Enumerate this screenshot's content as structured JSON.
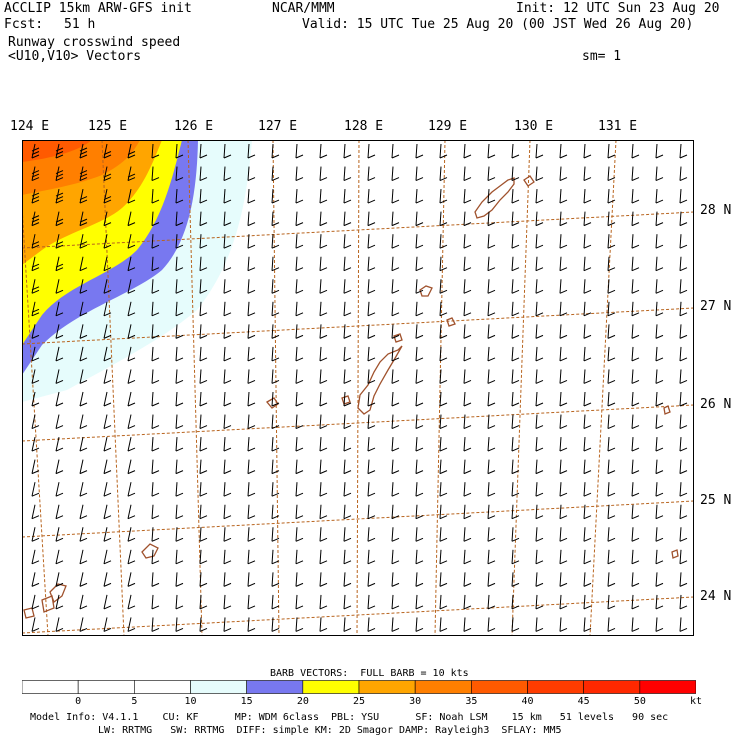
{
  "header": {
    "title": "ACCLIP 15km ARW-GFS init",
    "org": "NCAR/MMM",
    "init": "Init: 12 UTC Sun 23 Aug 20",
    "fcst_label": "Fcst:",
    "fcst_value": "51 h",
    "valid": "Valid: 15 UTC Tue 25 Aug 20 (00 JST Wed 26 Aug 20)",
    "field": "Runway crosswind speed",
    "vectors": "<U10,V10> Vectors",
    "smoothing": "sm= 1"
  },
  "map": {
    "lon_labels": [
      "124 E",
      "125 E",
      "126 E",
      "127 E",
      "128 E",
      "129 E",
      "130 E",
      "131 E"
    ],
    "lat_labels": [
      "28 N",
      "27 N",
      "26 N",
      "25 N",
      "24 N"
    ],
    "grid_color": "#b8641e",
    "coast_color": "#a0522d",
    "barb_color": "#000000",
    "high_wind_corner": "upper-left (NW)",
    "wind_direction": "from south (barbs pointing north)"
  },
  "colorbar": {
    "caption": "BARB VECTORS:  FULL BARB = 10 kts",
    "ticks": [
      "0",
      "5",
      "10",
      "15",
      "20",
      "25",
      "30",
      "35",
      "40",
      "45",
      "50"
    ],
    "unit": "kt",
    "colors": [
      "#ffffff",
      "#ffffff",
      "#ffffff",
      "#e6fcfc",
      "#7878f0",
      "#ffff00",
      "#ffa500",
      "#ff7f00",
      "#ff5a00",
      "#ff3c00",
      "#ff2800",
      "#ff0000"
    ]
  },
  "footer": {
    "line1": "Model Info: V4.1.1    CU: KF      MP: WDM 6class  PBL: YSU      SF: Noah LSM    15 km   51 levels   90 sec",
    "line2": "LW: RRTMG   SW: RRTMG  DIFF: simple KM: 2D Smagor DAMP: Rayleigh3  SFLAY: MM5"
  }
}
